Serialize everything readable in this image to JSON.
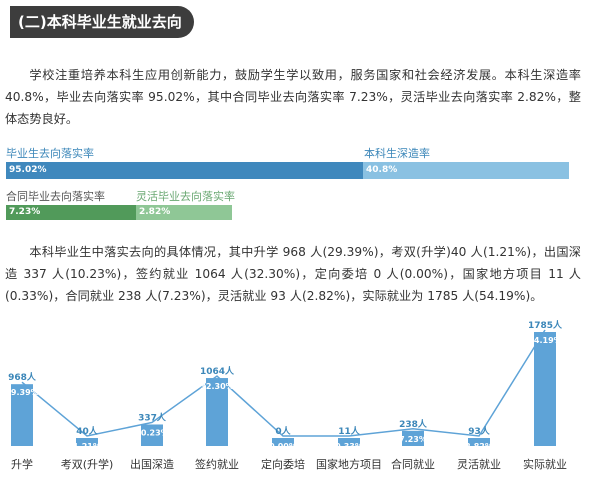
{
  "section": {
    "title": "(二)本科毕业生就业去向"
  },
  "intro_paragraph": "学校注重培养本科生应用创新能力，鼓励学生学以致用，服务国家和社会经济发展。本科生深造率 40.8%，毕业去向落实率 95.02%，其中合同毕业去向落实率 7.23%，灵活毕业去向落实率 2.82%，整体态势良好。",
  "rates": {
    "graduation": {
      "label": "毕业生去向落实率",
      "value_text": "95.02%",
      "value": 95.02
    },
    "further_study": {
      "label": "本科生深造率",
      "value_text": "40.8%",
      "value": 40.8
    },
    "contract": {
      "label": "合同毕业去向落实率",
      "value_text": "7.23%",
      "value": 7.23
    },
    "flexible": {
      "label": "灵活毕业去向落实率",
      "value_text": "2.82%",
      "value": 2.82
    }
  },
  "detail_paragraph": "本科毕业生中落实去向的具体情况，其中升学 968 人(29.39%)，考双(升学)40 人(1.21%)，出国深造 337 人(10.23%)，签约就业 1064 人(32.30%)，定向委培 0 人(0.00%)，国家地方项目 11 人(0.33%)，合同就业 238 人(7.23%)，灵活就业 93 人(2.82%)，实际就业为 1785 人(54.19%)。",
  "chart_data": {
    "type": "bar",
    "unit": "人",
    "categories": [
      "升学",
      "考双(升学)",
      "出国深造",
      "签约就业",
      "定向委培",
      "国家地方项目",
      "合同就业",
      "灵活就业",
      "实际就业"
    ],
    "values": [
      968,
      40,
      337,
      1064,
      0,
      11,
      238,
      93,
      1785
    ],
    "percentages": [
      "29.39%",
      "1.21%",
      "10.23%",
      "32.30%",
      "0.00%",
      "0.33%",
      "7.23%",
      "2.82%",
      "54.19%"
    ],
    "line_overlay": true,
    "colors": {
      "bar": "#5ea3d7",
      "line": "#5ea3d7",
      "count_label": "#3c87b9"
    }
  }
}
